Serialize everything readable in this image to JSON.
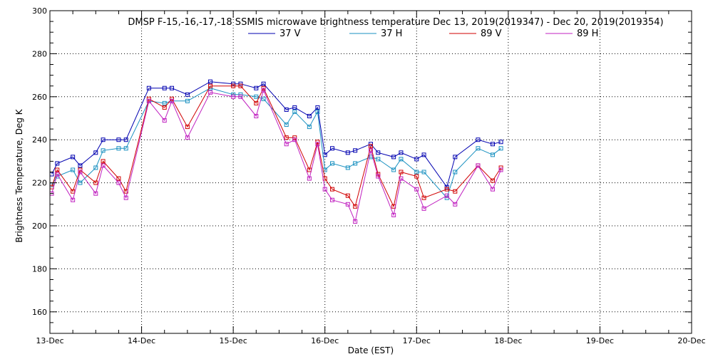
{
  "chart_data": {
    "type": "line",
    "title": "DMSP F-15,-16,-17,-18 SSMIS microwave brightness temperature Dec 13, 2019(2019347) - Dec 20, 2019(2019354)",
    "xlabel": "Date (EST)",
    "ylabel": "Brightness Temperature, Deg K",
    "xlim": [
      0,
      7
    ],
    "ylim": [
      150,
      300
    ],
    "x_ticks": [
      {
        "value": 0,
        "label": "13-Dec"
      },
      {
        "value": 1,
        "label": "14-Dec"
      },
      {
        "value": 2,
        "label": "15-Dec"
      },
      {
        "value": 3,
        "label": "16-Dec"
      },
      {
        "value": 4,
        "label": "17-Dec"
      },
      {
        "value": 5,
        "label": "18-Dec"
      },
      {
        "value": 6,
        "label": "19-Dec"
      },
      {
        "value": 7,
        "label": "20-Dec"
      }
    ],
    "y_ticks": [
      160,
      180,
      200,
      220,
      240,
      260,
      280,
      300
    ],
    "grid": true,
    "legend_position": "top-center",
    "series": [
      {
        "name": "37 V",
        "color": "#0000b0",
        "points": [
          [
            0.02,
            224
          ],
          [
            0.08,
            229
          ],
          [
            0.25,
            232
          ],
          [
            0.33,
            228
          ],
          [
            0.5,
            234
          ],
          [
            0.58,
            240
          ],
          [
            0.75,
            240
          ],
          [
            0.83,
            240
          ],
          [
            1.08,
            264
          ],
          [
            1.25,
            264
          ],
          [
            1.33,
            264
          ],
          [
            1.5,
            261
          ],
          [
            1.75,
            267
          ],
          [
            2.0,
            266
          ],
          [
            2.08,
            266
          ],
          [
            2.25,
            264
          ],
          [
            2.33,
            266
          ],
          [
            2.58,
            254
          ],
          [
            2.67,
            255
          ],
          [
            2.83,
            251
          ],
          [
            2.92,
            255
          ],
          [
            3.0,
            233
          ],
          [
            3.08,
            236
          ],
          [
            3.25,
            234
          ],
          [
            3.33,
            235
          ],
          [
            3.5,
            238
          ],
          [
            3.58,
            234
          ],
          [
            3.75,
            232
          ],
          [
            3.83,
            234
          ],
          [
            4.0,
            231
          ],
          [
            4.08,
            233
          ],
          [
            4.33,
            218
          ],
          [
            4.42,
            232
          ],
          [
            4.67,
            240
          ],
          [
            4.83,
            238
          ],
          [
            4.92,
            239
          ]
        ]
      },
      {
        "name": "37 H",
        "color": "#1890c0",
        "points": [
          [
            0.02,
            219
          ],
          [
            0.08,
            223
          ],
          [
            0.25,
            226
          ],
          [
            0.33,
            220
          ],
          [
            0.5,
            227
          ],
          [
            0.58,
            235
          ],
          [
            0.75,
            236
          ],
          [
            0.83,
            236
          ],
          [
            1.08,
            258
          ],
          [
            1.25,
            257
          ],
          [
            1.33,
            258
          ],
          [
            1.5,
            258
          ],
          [
            1.75,
            264
          ],
          [
            2.0,
            261
          ],
          [
            2.08,
            261
          ],
          [
            2.25,
            260
          ],
          [
            2.33,
            259
          ],
          [
            2.58,
            247
          ],
          [
            2.67,
            253
          ],
          [
            2.83,
            246
          ],
          [
            2.92,
            253
          ],
          [
            3.0,
            226
          ],
          [
            3.08,
            229
          ],
          [
            3.25,
            227
          ],
          [
            3.33,
            229
          ],
          [
            3.5,
            232
          ],
          [
            3.58,
            231
          ],
          [
            3.75,
            226
          ],
          [
            3.83,
            231
          ],
          [
            4.0,
            225
          ],
          [
            4.08,
            225
          ],
          [
            4.33,
            213
          ],
          [
            4.42,
            225
          ],
          [
            4.67,
            236
          ],
          [
            4.83,
            233
          ],
          [
            4.92,
            236
          ]
        ]
      },
      {
        "name": "89 V",
        "color": "#d00000",
        "points": [
          [
            0.02,
            218
          ],
          [
            0.08,
            226
          ],
          [
            0.25,
            216
          ],
          [
            0.33,
            226
          ],
          [
            0.5,
            220
          ],
          [
            0.58,
            230
          ],
          [
            0.75,
            222
          ],
          [
            0.83,
            216
          ],
          [
            1.08,
            259
          ],
          [
            1.25,
            255
          ],
          [
            1.33,
            259
          ],
          [
            1.5,
            246
          ],
          [
            1.75,
            265
          ],
          [
            2.0,
            265
          ],
          [
            2.08,
            265
          ],
          [
            2.25,
            257
          ],
          [
            2.33,
            264
          ],
          [
            2.58,
            241
          ],
          [
            2.67,
            241
          ],
          [
            2.83,
            226
          ],
          [
            2.92,
            239
          ],
          [
            3.0,
            222
          ],
          [
            3.08,
            217
          ],
          [
            3.25,
            214
          ],
          [
            3.33,
            209
          ],
          [
            3.5,
            237
          ],
          [
            3.58,
            224
          ],
          [
            3.75,
            209
          ],
          [
            3.83,
            225
          ],
          [
            4.0,
            223
          ],
          [
            4.08,
            213
          ],
          [
            4.33,
            217
          ],
          [
            4.42,
            216
          ],
          [
            4.67,
            228
          ],
          [
            4.83,
            221
          ],
          [
            4.92,
            227
          ]
        ]
      },
      {
        "name": "89 H",
        "color": "#c020c0",
        "points": [
          [
            0.02,
            215
          ],
          [
            0.08,
            224
          ],
          [
            0.25,
            212
          ],
          [
            0.33,
            225
          ],
          [
            0.5,
            215
          ],
          [
            0.58,
            228
          ],
          [
            0.75,
            220
          ],
          [
            0.83,
            213
          ],
          [
            1.08,
            258
          ],
          [
            1.25,
            249
          ],
          [
            1.33,
            258
          ],
          [
            1.5,
            241
          ],
          [
            1.75,
            262
          ],
          [
            2.0,
            260
          ],
          [
            2.08,
            260
          ],
          [
            2.25,
            251
          ],
          [
            2.33,
            263
          ],
          [
            2.58,
            238
          ],
          [
            2.67,
            240
          ],
          [
            2.83,
            222
          ],
          [
            2.92,
            238
          ],
          [
            3.0,
            217
          ],
          [
            3.08,
            212
          ],
          [
            3.25,
            210
          ],
          [
            3.33,
            202
          ],
          [
            3.5,
            235
          ],
          [
            3.58,
            223
          ],
          [
            3.75,
            205
          ],
          [
            3.83,
            222
          ],
          [
            4.0,
            217
          ],
          [
            4.08,
            208
          ],
          [
            4.33,
            214
          ],
          [
            4.42,
            210
          ],
          [
            4.67,
            228
          ],
          [
            4.83,
            217
          ],
          [
            4.92,
            226
          ]
        ]
      }
    ]
  }
}
